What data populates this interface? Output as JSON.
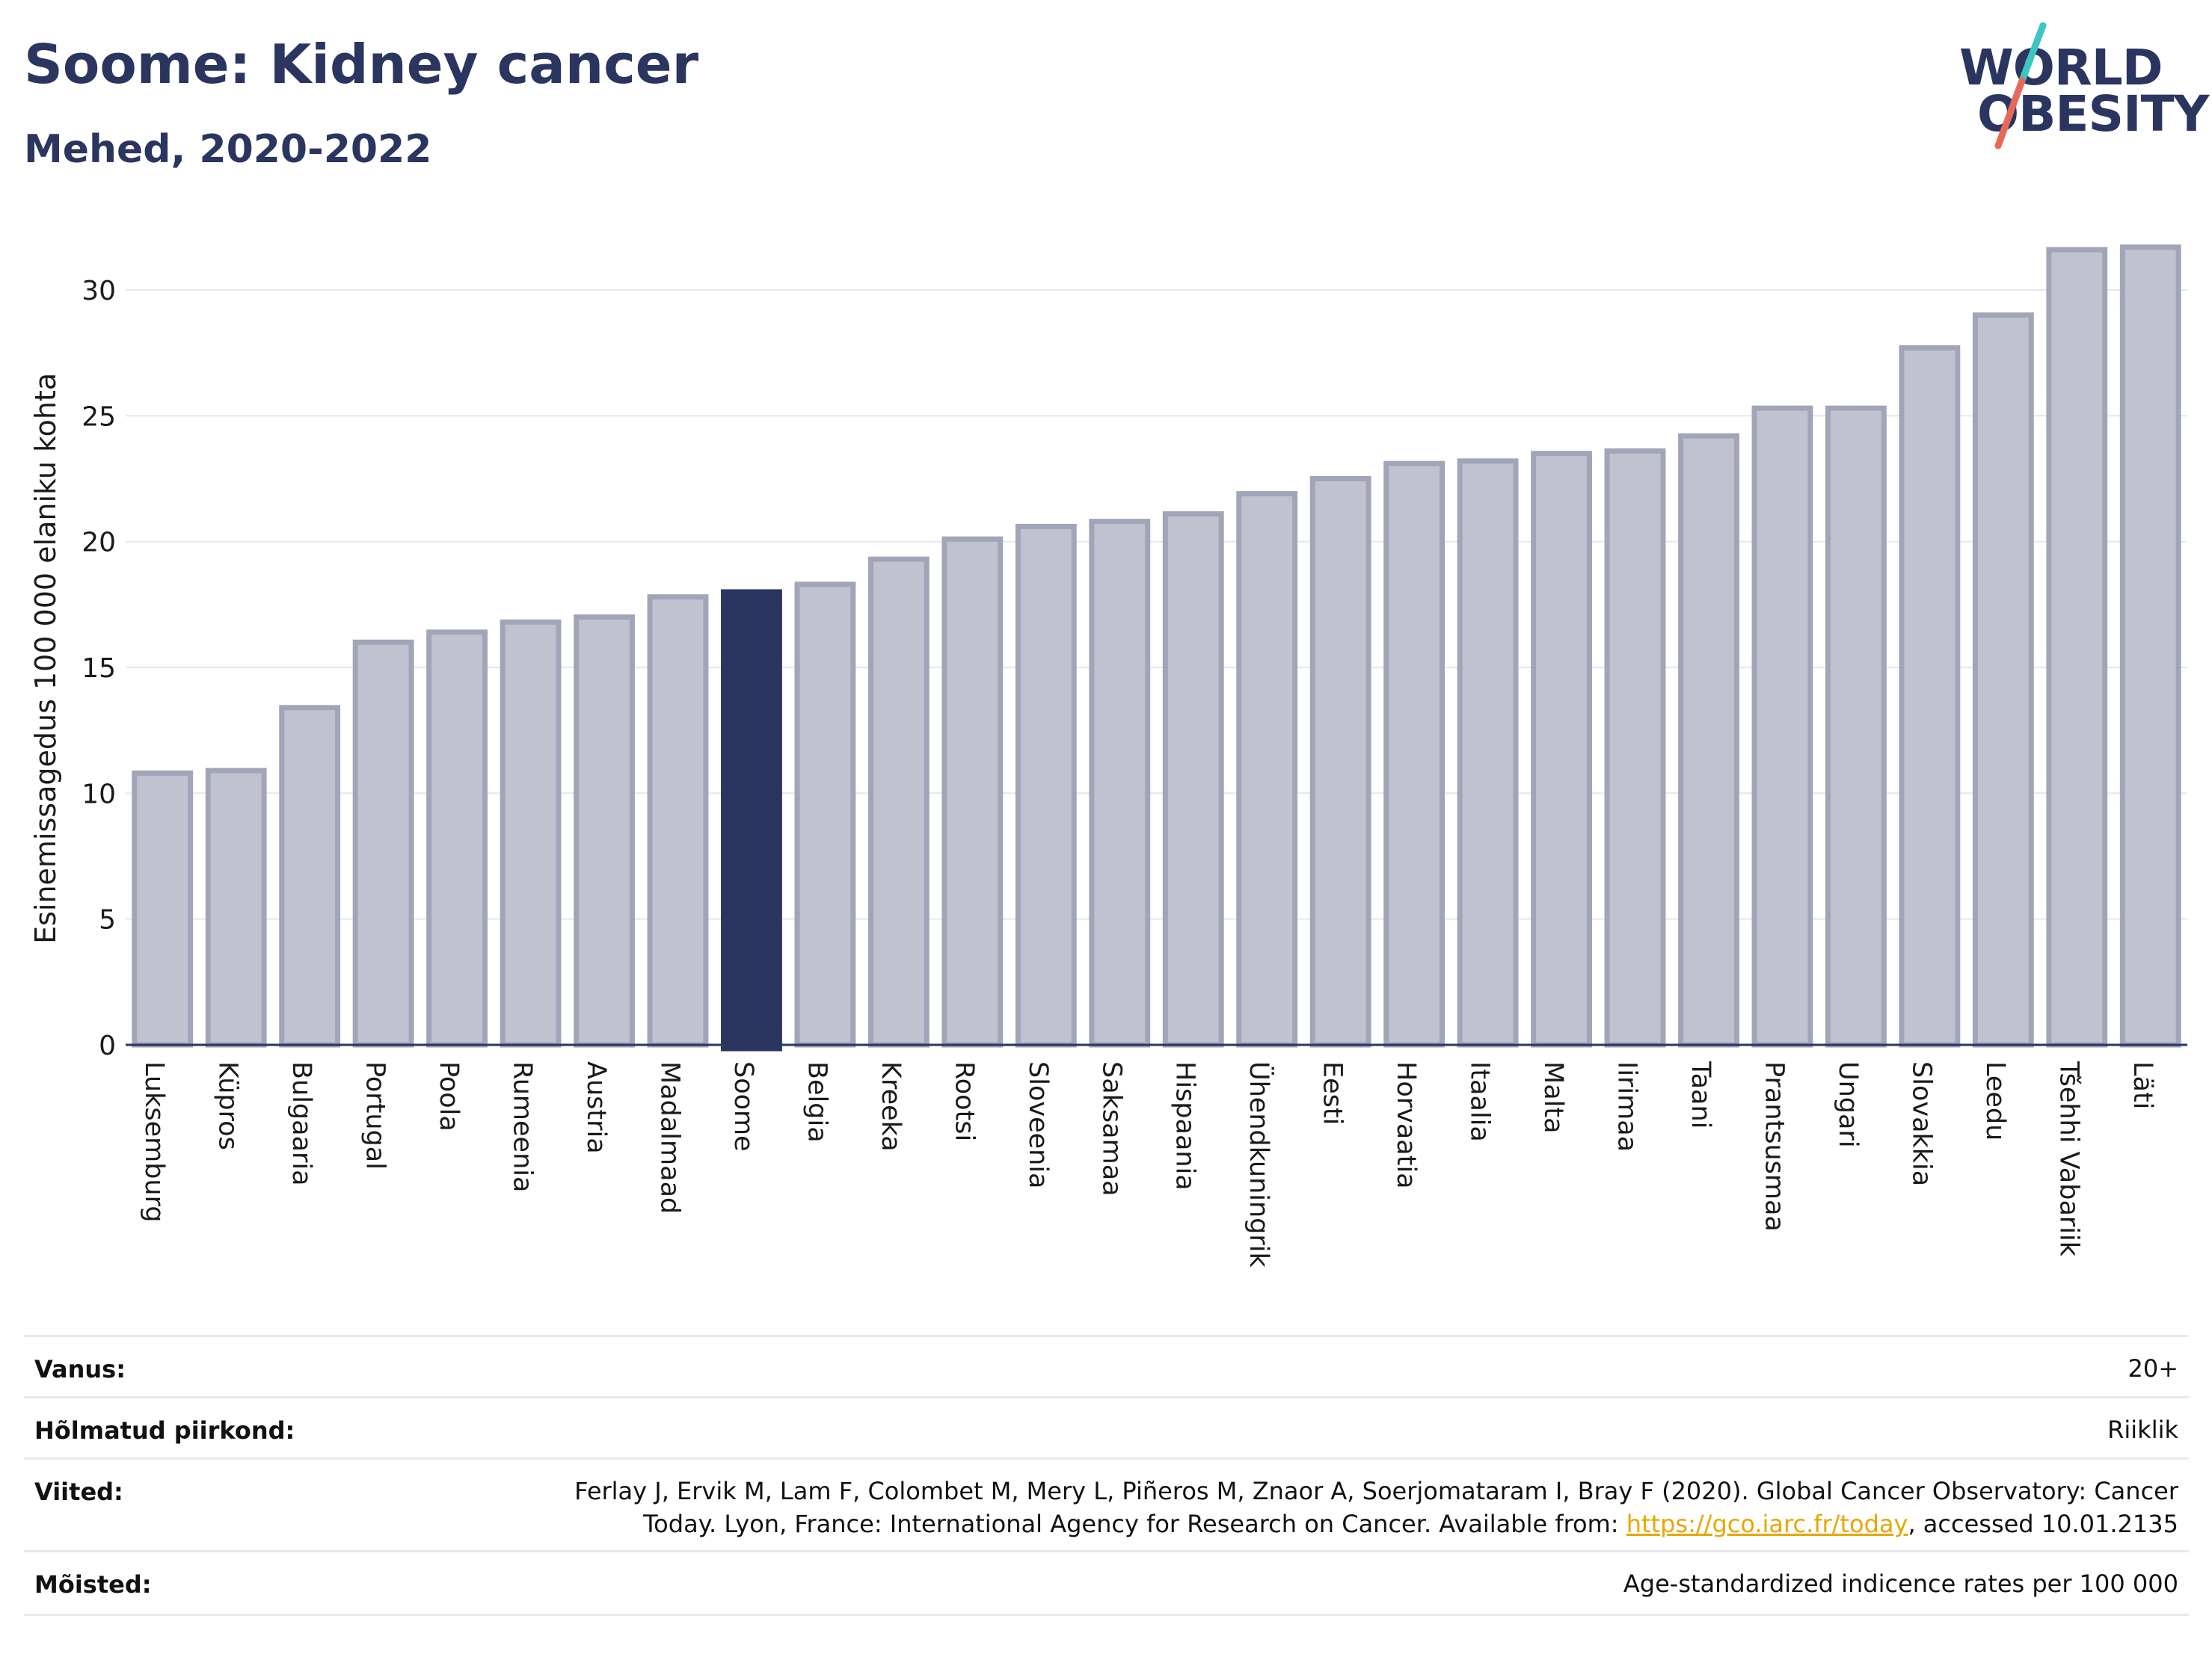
{
  "header": {
    "title": "Soome: Kidney cancer",
    "subtitle": "Mehed, 2020-2022"
  },
  "logo": {
    "line1": "WORLD",
    "line2": "OBESITY",
    "slash_colors": [
      "#3cc6c0",
      "#e8685a"
    ]
  },
  "colors": {
    "bar": "#c0c3cf",
    "bar_border": "#a0a5b8",
    "highlight": "#2a3560",
    "grid": "#e6e6ee",
    "axis": "#2a3560"
  },
  "chart_data": {
    "type": "bar",
    "ylabel": "Esinemissagedus 100 000 elaniku kohta",
    "ylim": [
      0,
      32.5
    ],
    "yticks": [
      0,
      5,
      10,
      15,
      20,
      25,
      30
    ],
    "grid": true,
    "highlight": "Soome",
    "categories": [
      "Luksemburg",
      "Küpros",
      "Bulgaaria",
      "Portugal",
      "Poola",
      "Rumeenia",
      "Austria",
      "Madalmaad",
      "Soome",
      "Belgia",
      "Kreeka",
      "Rootsi",
      "Sloveenia",
      "Saksamaa",
      "Hispaania",
      "Ühendkuningrik",
      "Eesti",
      "Horvaatia",
      "Itaalia",
      "Malta",
      "Iirimaa",
      "Taani",
      "Prantsusmaa",
      "Ungari",
      "Slovakkia",
      "Leedu",
      "Tšehhi Vabariik",
      "Läti"
    ],
    "values": [
      10.8,
      10.9,
      13.4,
      16.0,
      16.4,
      16.8,
      17.0,
      17.8,
      18.0,
      18.3,
      19.3,
      20.1,
      20.6,
      20.8,
      21.1,
      21.9,
      22.5,
      23.1,
      23.2,
      23.5,
      23.6,
      24.2,
      25.3,
      25.3,
      27.7,
      29.0,
      31.6,
      31.7
    ]
  },
  "info": {
    "rows": [
      {
        "label": "Vanus:",
        "value": "20+"
      },
      {
        "label": "Hõlmatud piirkond:",
        "value": "Riiklik"
      },
      {
        "label": "Viited:",
        "value_line1": "Ferlay J, Ervik M, Lam F, Colombet M, Mery L, Piñeros M, Znaor A, Soerjomataram I, Bray F (2020). Global Cancer Observatory: Cancer",
        "value_line2_pre": "Today. Lyon, France: International Agency for Research on Cancer. Available from: ",
        "link": "https://gco.iarc.fr/today",
        "value_line2_post": ", accessed 10.01.2135"
      },
      {
        "label": "Mõisted:",
        "value": "Age-standardized indicence rates per 100 000"
      }
    ]
  }
}
